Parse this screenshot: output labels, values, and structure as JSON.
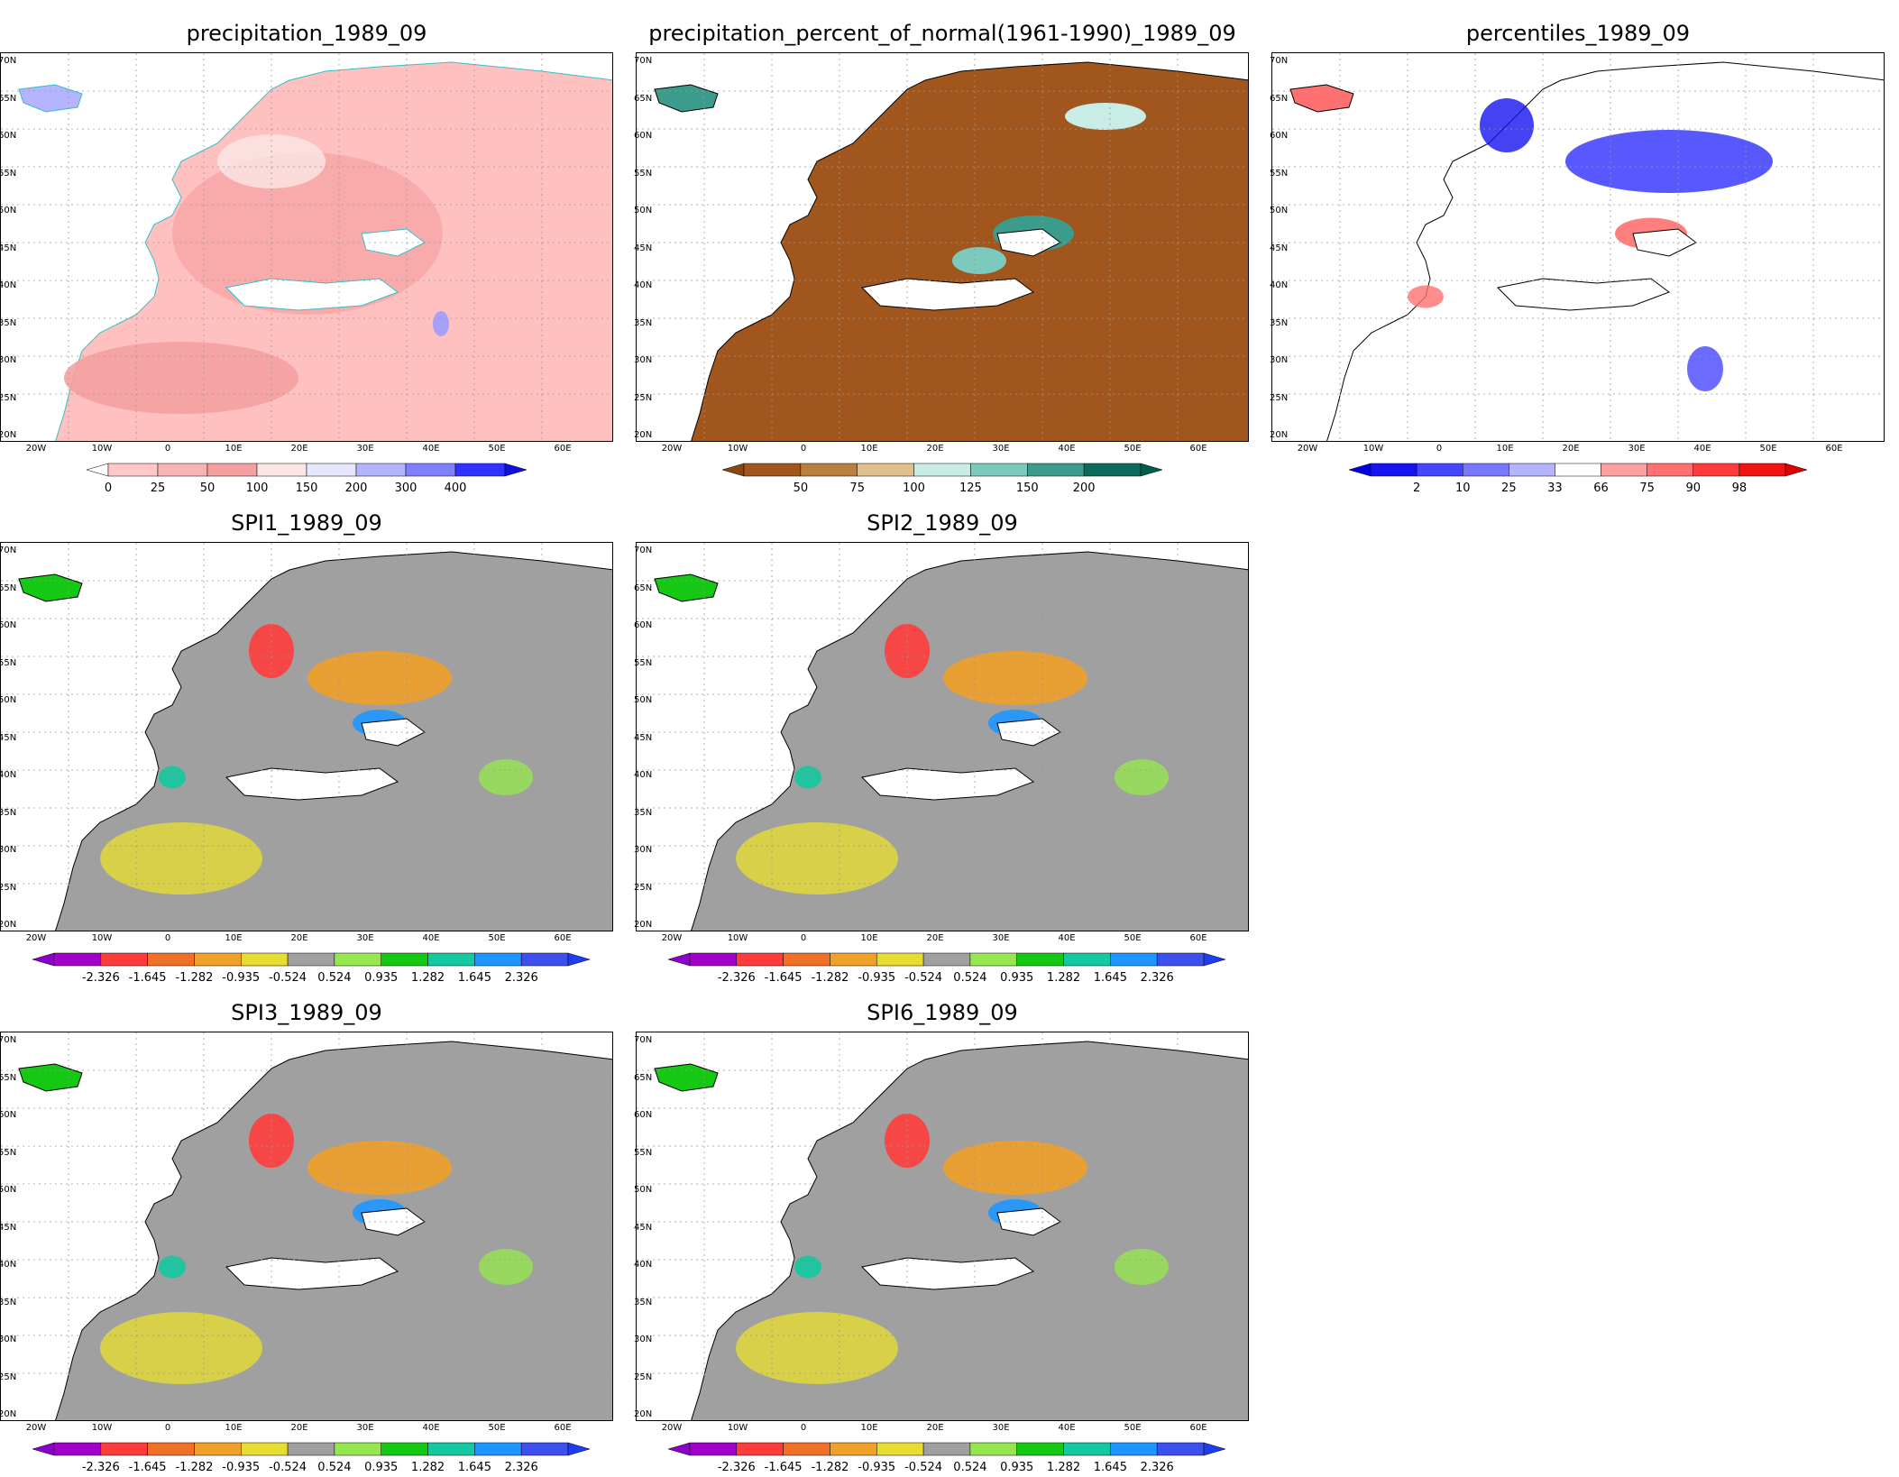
{
  "panels": [
    {
      "id": "precip",
      "title": "precipitation_1989_09",
      "colorbar": {
        "labels": [
          "0",
          "25",
          "50",
          "100",
          "150",
          "200",
          "300",
          "400"
        ],
        "colors": [
          "#ffc8c8",
          "#f8b4b4",
          "#f4a0a0",
          "#fbe6e6",
          "#e6e6ff",
          "#b4b4ff",
          "#8080ff",
          "#3232ff"
        ],
        "left_arrow": "#ffffff",
        "right_arrow": "#1010e0"
      }
    },
    {
      "id": "pct",
      "title": "precipitation_percent_of_normal(1961-1990)_1989_09",
      "colorbar": {
        "labels": [
          "50",
          "75",
          "100",
          "125",
          "150",
          "200"
        ],
        "colors": [
          "#a0561c",
          "#b8803c",
          "#e0c08c",
          "#c8ece6",
          "#7ccabe",
          "#3c9c8c",
          "#0c6c5c"
        ],
        "left_arrow": "#8c4610",
        "right_arrow": "#005c4c"
      }
    },
    {
      "id": "perc",
      "title": "percentiles_1989_09",
      "colorbar": {
        "labels": [
          "2",
          "10",
          "25",
          "33",
          "66",
          "75",
          "90",
          "98"
        ],
        "colors": [
          "#1414f0",
          "#4646ff",
          "#7878ff",
          "#b4b4ff",
          "#ffffff",
          "#ffa0a0",
          "#ff7070",
          "#ff3c3c",
          "#f01414"
        ],
        "left_arrow": "#0000e0",
        "right_arrow": "#e00000"
      }
    },
    {
      "id": "spi1",
      "title": "SPI1_1989_09",
      "colorbar": {
        "labels": [
          "-2.326",
          "-1.645",
          "-1.282",
          "-0.935",
          "-0.524",
          "0.524",
          "0.935",
          "1.282",
          "1.645",
          "2.326"
        ],
        "colors": [
          "#a000c8",
          "#ff3c3c",
          "#f07028",
          "#f0a028",
          "#e6dc32",
          "#a0a0a0",
          "#96e650",
          "#14c814",
          "#14c8a0",
          "#1e96ff",
          "#3c50f0"
        ],
        "left_arrow": "#8c00c8",
        "right_arrow": "#1e3cf0"
      }
    },
    {
      "id": "spi2",
      "title": "SPI2_1989_09",
      "colorbar": {
        "labels": [
          "-2.326",
          "-1.645",
          "-1.282",
          "-0.935",
          "-0.524",
          "0.524",
          "0.935",
          "1.282",
          "1.645",
          "2.326"
        ],
        "colors": [
          "#a000c8",
          "#ff3c3c",
          "#f07028",
          "#f0a028",
          "#e6dc32",
          "#a0a0a0",
          "#96e650",
          "#14c814",
          "#14c8a0",
          "#1e96ff",
          "#3c50f0"
        ],
        "left_arrow": "#8c00c8",
        "right_arrow": "#1e3cf0"
      }
    },
    {
      "id": "spi3",
      "title": "SPI3_1989_09",
      "colorbar": {
        "labels": [
          "-2.326",
          "-1.645",
          "-1.282",
          "-0.935",
          "-0.524",
          "0.524",
          "0.935",
          "1.282",
          "1.645",
          "2.326"
        ],
        "colors": [
          "#a000c8",
          "#ff3c3c",
          "#f07028",
          "#f0a028",
          "#e6dc32",
          "#a0a0a0",
          "#96e650",
          "#14c814",
          "#14c8a0",
          "#1e96ff",
          "#3c50f0"
        ],
        "left_arrow": "#8c00c8",
        "right_arrow": "#1e3cf0"
      }
    },
    {
      "id": "spi6",
      "title": "SPI6_1989_09",
      "colorbar": {
        "labels": [
          "-2.326",
          "-1.645",
          "-1.282",
          "-0.935",
          "-0.524",
          "0.524",
          "0.935",
          "1.282",
          "1.645",
          "2.326"
        ],
        "colors": [
          "#a000c8",
          "#ff3c3c",
          "#f07028",
          "#f0a028",
          "#e6dc32",
          "#a0a0a0",
          "#96e650",
          "#14c814",
          "#14c8a0",
          "#1e96ff",
          "#3c50f0"
        ],
        "left_arrow": "#8c00c8",
        "right_arrow": "#1e3cf0"
      }
    }
  ],
  "axes": {
    "lat_labels": [
      "70N",
      "65N",
      "60N",
      "55N",
      "50N",
      "45N",
      "40N",
      "35N",
      "30N",
      "25N",
      "20N"
    ],
    "lon_labels": [
      "20W",
      "10W",
      "0",
      "10E",
      "20E",
      "30E",
      "40E",
      "50E",
      "60E"
    ]
  }
}
